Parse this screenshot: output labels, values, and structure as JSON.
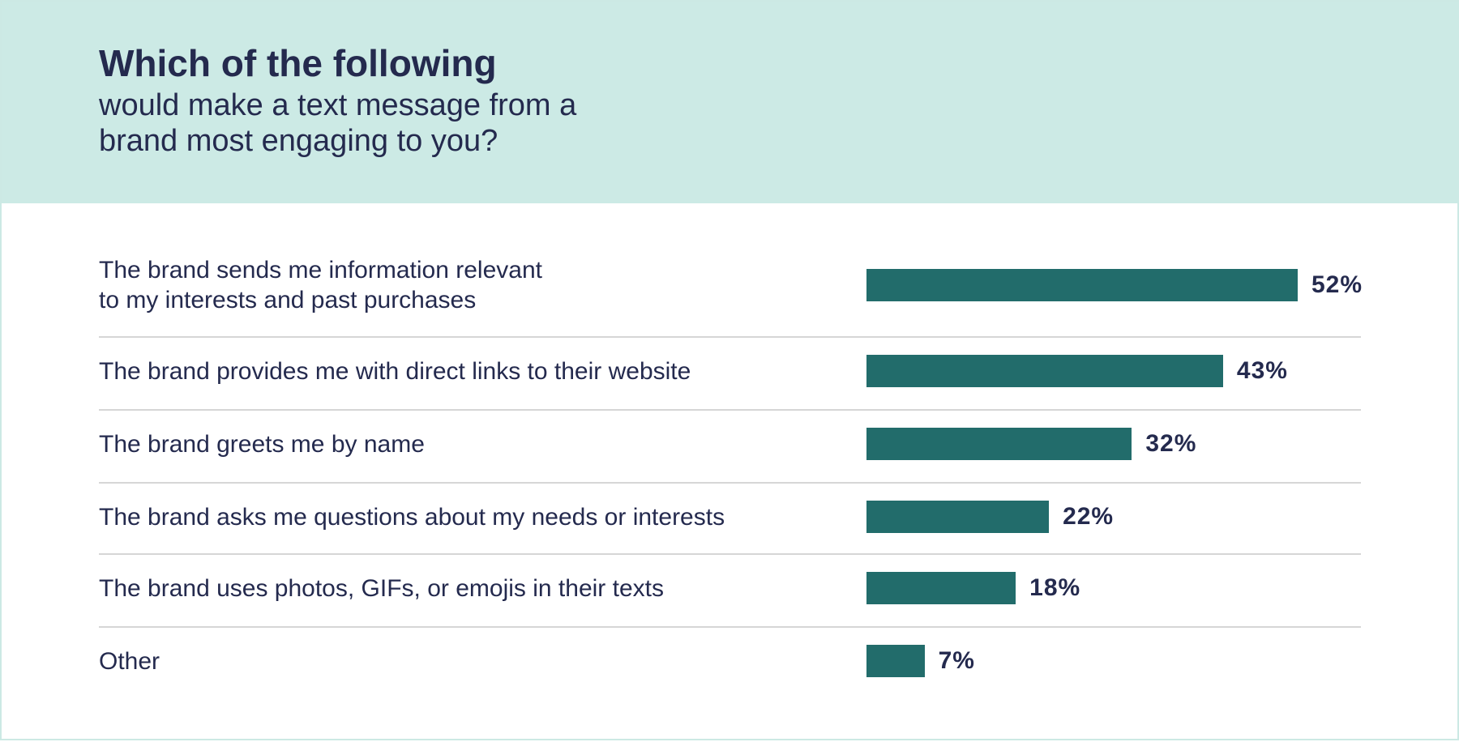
{
  "header": {
    "title": "Which of the following",
    "subtitle": "would make a text message from a brand most engaging to you?"
  },
  "colors": {
    "header_background": "#cceae5",
    "bar": "#226c6b",
    "text": "#242a4e",
    "divider": "#d6d6d6"
  },
  "chart_data": {
    "type": "bar",
    "orientation": "horizontal",
    "title": "Which of the following would make a text message from a brand most engaging to you?",
    "categories": [
      "The brand sends me information relevant\nto my interests and past purchases",
      "The brand provides me with direct links to their website",
      "The brand greets me by name",
      "The brand asks me questions about my needs or interests",
      "The brand uses photos, GIFs, or emojis in their texts",
      "Other"
    ],
    "values": [
      52,
      43,
      32,
      22,
      18,
      7
    ],
    "value_labels": [
      "52%",
      "43%",
      "32%",
      "22%",
      "18%",
      "7%"
    ],
    "xlim": [
      0,
      52
    ],
    "grid": false,
    "legend": "none"
  }
}
